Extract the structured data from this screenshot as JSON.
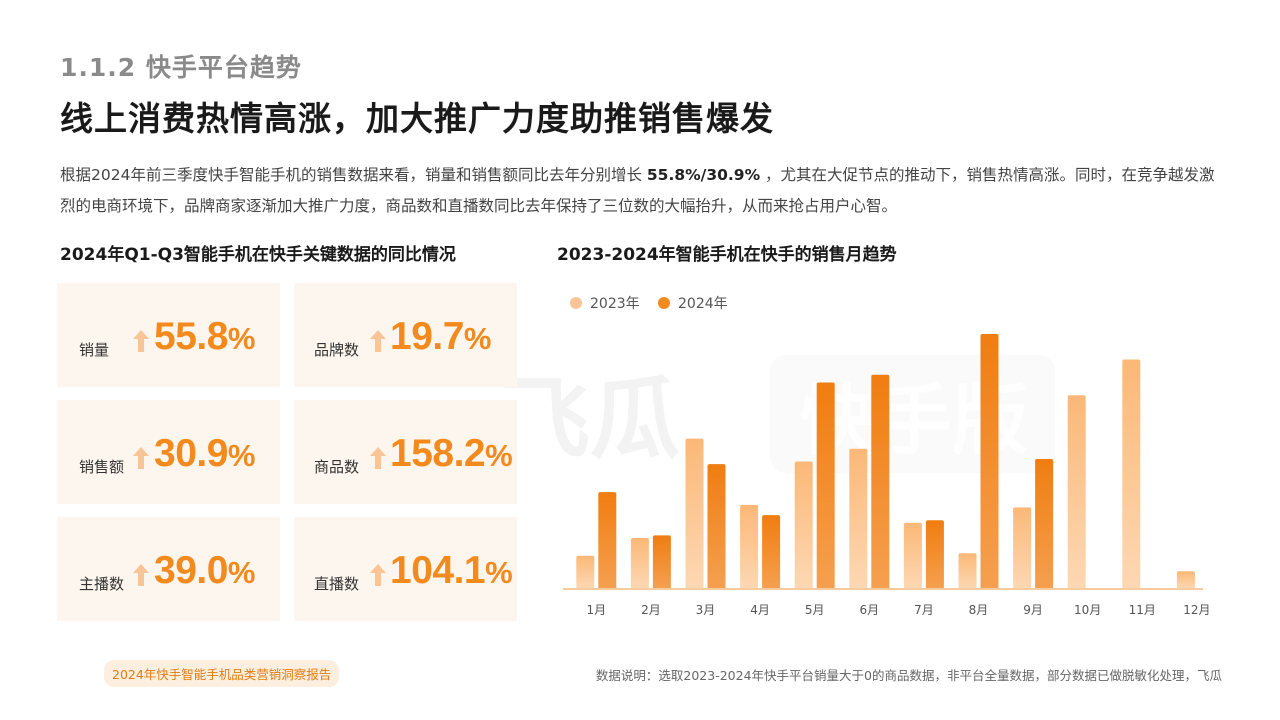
{
  "header": {
    "section": "1.1.2 快手平台趋势",
    "headline": "线上消费热情高涨，加大推广力度助推销售爆发"
  },
  "intro": {
    "before": "根据2024年前三季度快手智能手机的销售数据来看，销量和销售额同比去年分别增长 ",
    "highlight": "55.8%/30.9%",
    "after": " ，尤其在大促节点的推动下，销售热情高涨。同时，在竞争越发激烈的电商环境下，品牌商家逐渐加大推广力度，商品数和直播数同比去年保持了三位数的大幅抬升，从而来抢占用户心智。"
  },
  "kpi_section": {
    "title": "2024年Q1-Q3智能手机在快手关键数据的同比情况",
    "cards": [
      {
        "label": "销量",
        "value": "55.8",
        "unit": "%"
      },
      {
        "label": "品牌数",
        "value": "19.7",
        "unit": "%"
      },
      {
        "label": "销售额",
        "value": "30.9",
        "unit": "%"
      },
      {
        "label": "商品数",
        "value": "158.2",
        "unit": "%"
      },
      {
        "label": "主播数",
        "value": "39.0",
        "unit": "%"
      },
      {
        "label": "直播数",
        "value": "104.1",
        "unit": "%"
      }
    ],
    "arrow_icon": "up-arrow-icon"
  },
  "chart_section": {
    "title": "2023-2024年智能手机在快手的销售月趋势"
  },
  "chart_data": {
    "type": "bar",
    "categories": [
      "1月",
      "2月",
      "3月",
      "4月",
      "5月",
      "6月",
      "7月",
      "8月",
      "9月",
      "10月",
      "11月",
      "12月"
    ],
    "series": [
      {
        "name": "2023年",
        "values": [
          13,
          20,
          59,
          33,
          50,
          55,
          26,
          14,
          32,
          76,
          90,
          7
        ],
        "color": "#f9c596"
      },
      {
        "name": "2024年",
        "values": [
          38,
          21,
          49,
          29,
          81,
          84,
          27,
          100,
          51,
          null,
          null,
          null
        ],
        "color": "#f28a1e"
      }
    ],
    "ylim": [
      0,
      100
    ],
    "grid": false,
    "legend": "top-left"
  },
  "footer": {
    "tag": "2024年快手智能手机品类营销洞察报告",
    "note": "数据说明：选取2023-2024年快手平台销量大于0的商品数据，非平台全量数据，部分数据已做脱敏化处理，飞瓜"
  },
  "colors": {
    "accent": "#f28a1e",
    "accent_light": "#f9c596",
    "card_bg": "#fdf6ee"
  }
}
